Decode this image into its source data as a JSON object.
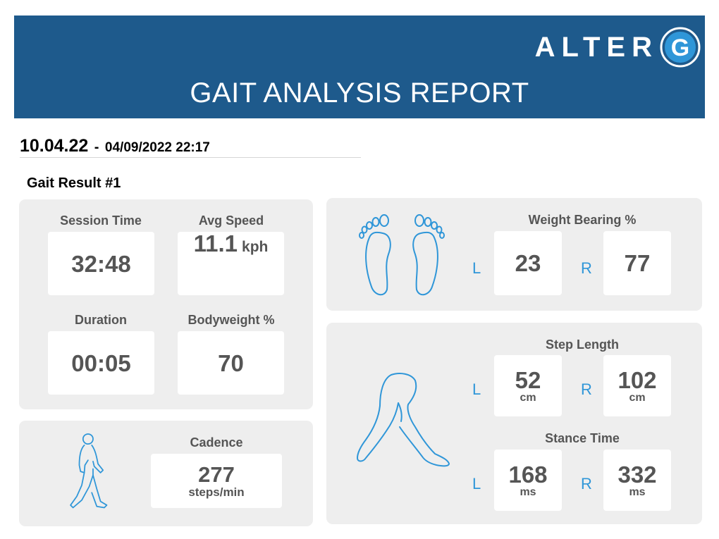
{
  "header": {
    "logo_text": "ALTER",
    "logo_letter": "G",
    "title": "GAIT ANALYSIS REPORT"
  },
  "session": {
    "name": "10.04.22",
    "separator": "-",
    "datetime": "04/09/2022 22:17"
  },
  "result_title": "Gait Result #1",
  "metrics": {
    "session_time": {
      "label": "Session Time",
      "value": "32:48"
    },
    "avg_speed": {
      "label": "Avg Speed",
      "value": "11.1",
      "unit": "kph"
    },
    "duration": {
      "label": "Duration",
      "value": "00:05"
    },
    "bodyweight": {
      "label": "Bodyweight %",
      "value": "70"
    }
  },
  "cadence": {
    "label": "Cadence",
    "value": "277",
    "unit": "steps/min"
  },
  "weight_bearing": {
    "label": "Weight Bearing %",
    "left_label": "L",
    "left_value": "23",
    "right_label": "R",
    "right_value": "77"
  },
  "step_length": {
    "label": "Step Length",
    "left_label": "L",
    "left_value": "52",
    "left_unit": "cm",
    "right_label": "R",
    "right_value": "102",
    "right_unit": "cm"
  },
  "stance_time": {
    "label": "Stance Time",
    "left_label": "L",
    "left_value": "168",
    "left_unit": "ms",
    "right_label": "R",
    "right_value": "332",
    "right_unit": "ms"
  },
  "colors": {
    "header_bg": "#1e5a8c",
    "panel_bg": "#eeeeee",
    "accent": "#2f96d8",
    "value_text": "#555555"
  },
  "icons": [
    "alterg-g-logo",
    "footprints-icon",
    "walking-person-icon",
    "legs-stride-icon"
  ]
}
